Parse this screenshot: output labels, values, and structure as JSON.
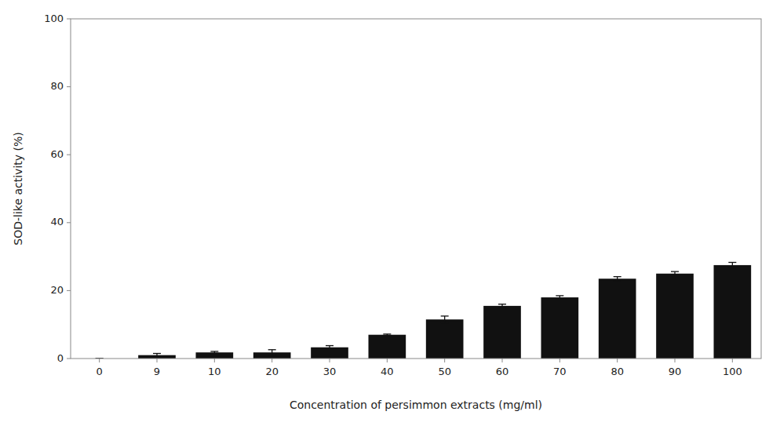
{
  "chart_data": {
    "type": "bar",
    "categories": [
      "0",
      "9",
      "10",
      "20",
      "30",
      "40",
      "50",
      "60",
      "70",
      "80",
      "90",
      "100"
    ],
    "values": [
      0.0,
      1.0,
      1.8,
      1.8,
      3.3,
      7.0,
      11.5,
      15.5,
      18.0,
      23.5,
      25.0,
      27.5
    ],
    "errors": [
      0.0,
      0.5,
      0.3,
      0.8,
      0.5,
      0.2,
      1.0,
      0.5,
      0.5,
      0.6,
      0.6,
      0.8
    ],
    "color": "#111111",
    "xlabel": "Concentration of persimmon extracts (mg/ml)",
    "ylabel": "SOD-like activity (%)",
    "ylim": [
      0,
      100
    ],
    "yticks": [
      0,
      20,
      40,
      60,
      80,
      100
    ],
    "grid": false
  }
}
